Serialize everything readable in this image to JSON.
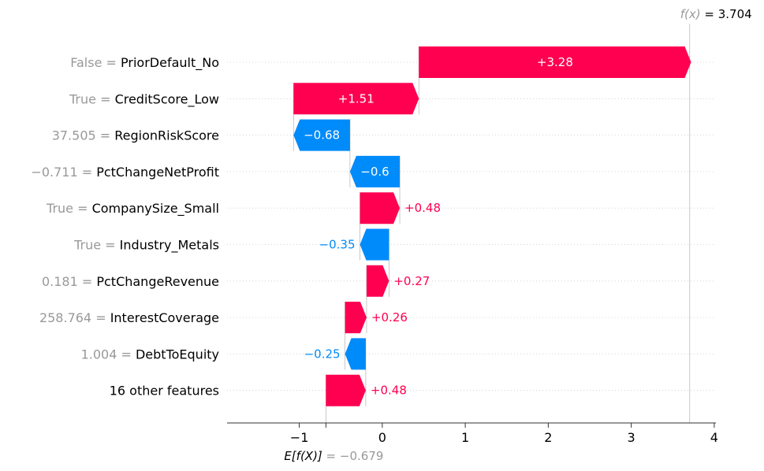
{
  "chart_data": {
    "type": "waterfall",
    "colors": {
      "positive": "#ff0051",
      "negative": "#008bfb",
      "feature_value": "#999999",
      "feature_name": "#000000",
      "axis": "#333333"
    },
    "features": [
      {
        "value": "False",
        "eq": " = ",
        "name": "PriorDefault_No",
        "shap": 3.28,
        "label": "+3.28"
      },
      {
        "value": "True",
        "eq": " = ",
        "name": "CreditScore_Low",
        "shap": 1.51,
        "label": "+1.51"
      },
      {
        "value": "37.505",
        "eq": " = ",
        "name": "RegionRiskScore",
        "shap": -0.68,
        "label": "−0.68"
      },
      {
        "value": "−0.711",
        "eq": " = ",
        "name": "PctChangeNetProfit",
        "shap": -0.6,
        "label": "−0.6"
      },
      {
        "value": "True",
        "eq": " = ",
        "name": "CompanySize_Small",
        "shap": 0.48,
        "label": "+0.48"
      },
      {
        "value": "True",
        "eq": " = ",
        "name": "Industry_Metals",
        "shap": -0.35,
        "label": "−0.35"
      },
      {
        "value": "0.181",
        "eq": " = ",
        "name": "PctChangeRevenue",
        "shap": 0.27,
        "label": "+0.27"
      },
      {
        "value": "258.764",
        "eq": " = ",
        "name": "InterestCoverage",
        "shap": 0.26,
        "label": "+0.26"
      },
      {
        "value": "1.004",
        "eq": " = ",
        "name": "DebtToEquity",
        "shap": -0.25,
        "label": "−0.25"
      },
      {
        "value": "",
        "eq": "",
        "name": "16 other features",
        "shap": 0.48,
        "label": "+0.48"
      }
    ],
    "base_value": -0.679,
    "base_label": {
      "prefix": "E[f(X)]",
      "rest": " = −0.679"
    },
    "final_value": 3.704,
    "final_label": {
      "prefix": "f(x)",
      "rest": " = 3.704"
    },
    "xlim": [
      -1.87,
      4.02
    ],
    "xticks": [
      {
        "v": -1,
        "label": "−1"
      },
      {
        "v": 0,
        "label": "0"
      },
      {
        "v": 1,
        "label": "1"
      },
      {
        "v": 2,
        "label": "2"
      },
      {
        "v": 3,
        "label": "3"
      },
      {
        "v": 4,
        "label": "4"
      }
    ]
  }
}
